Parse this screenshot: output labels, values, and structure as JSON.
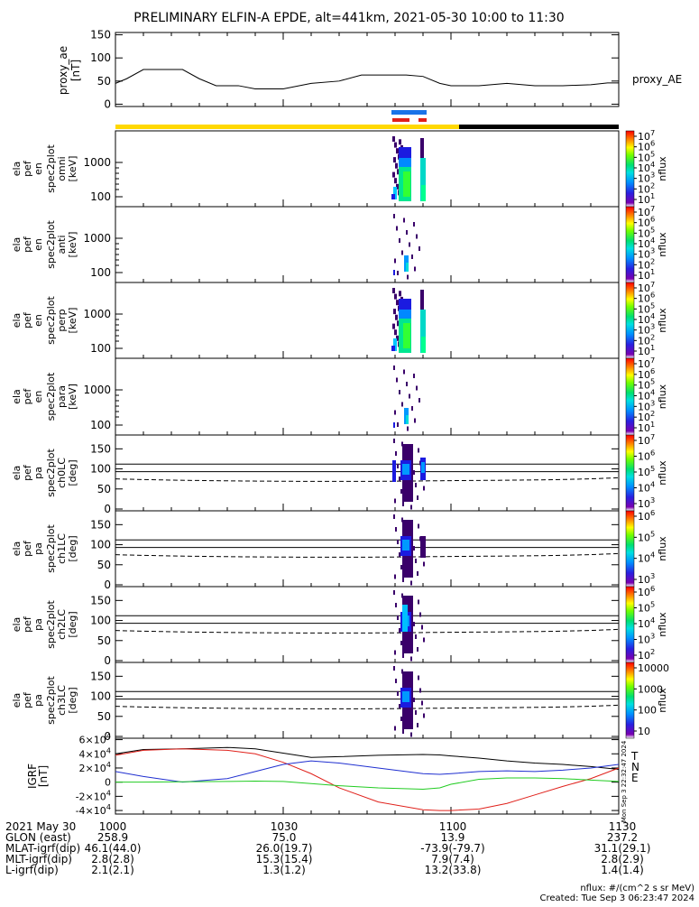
{
  "title": "PRELIMINARY ELFIN-A EPDE, alt=441km, 2021-05-30 10:00 to 11:30",
  "colors": {
    "sci_zone": "#ffd800",
    "night": "#000000",
    "trace_blue": "#1a73e8",
    "trace_red": "#e0201a"
  },
  "ae": {
    "ylabel_lines": [
      "proxy_ae",
      "[nT]"
    ],
    "yticks": [
      "0",
      "50",
      "100",
      "150"
    ],
    "legend": "proxy_AE"
  },
  "panels": [
    {
      "ylabel_lines": [
        "ela",
        "pef",
        "en",
        "spec2plot",
        "omni",
        "[keV]"
      ],
      "yticks": [
        "100",
        "1000"
      ],
      "cbar_ticks": [
        "10<sup>7</sup>",
        "10<sup>6</sup>",
        "10<sup>5</sup>",
        "10<sup>4</sup>",
        "10<sup>3</sup>",
        "10<sup>2</sup>",
        "10<sup>1</sup>"
      ],
      "cbar_label": "nflux"
    },
    {
      "ylabel_lines": [
        "ela",
        "pef",
        "en",
        "spec2plot",
        "anti",
        "[keV]"
      ],
      "yticks": [
        "100",
        "1000"
      ],
      "cbar_ticks": [
        "10<sup>7</sup>",
        "10<sup>6</sup>",
        "10<sup>5</sup>",
        "10<sup>4</sup>",
        "10<sup>3</sup>",
        "10<sup>2</sup>",
        "10<sup>1</sup>"
      ],
      "cbar_label": "nflux"
    },
    {
      "ylabel_lines": [
        "ela",
        "pef",
        "en",
        "spec2plot",
        "perp",
        "[keV]"
      ],
      "yticks": [
        "100",
        "1000"
      ],
      "cbar_ticks": [
        "10<sup>7</sup>",
        "10<sup>6</sup>",
        "10<sup>5</sup>",
        "10<sup>4</sup>",
        "10<sup>3</sup>",
        "10<sup>2</sup>",
        "10<sup>1</sup>"
      ],
      "cbar_label": "nflux"
    },
    {
      "ylabel_lines": [
        "ela",
        "pef",
        "en",
        "spec2plot",
        "para",
        "[keV]"
      ],
      "yticks": [
        "100",
        "1000"
      ],
      "cbar_ticks": [
        "10<sup>7</sup>",
        "10<sup>6</sup>",
        "10<sup>5</sup>",
        "10<sup>4</sup>",
        "10<sup>3</sup>",
        "10<sup>2</sup>",
        "10<sup>1</sup>"
      ],
      "cbar_label": "nflux"
    },
    {
      "ylabel_lines": [
        "ela",
        "pef",
        "pa",
        "spec2plot",
        "ch0LC",
        "[deg]"
      ],
      "yticks": [
        "0",
        "50",
        "100",
        "150"
      ],
      "cbar_ticks": [
        "10<sup>7</sup>",
        "10<sup>6</sup>",
        "10<sup>5</sup>",
        "10<sup>4</sup>",
        "10<sup>3</sup>"
      ],
      "cbar_label": "nflux"
    },
    {
      "ylabel_lines": [
        "ela",
        "pef",
        "pa",
        "spec2plot",
        "ch1LC",
        "[deg]"
      ],
      "yticks": [
        "0",
        "50",
        "100",
        "150"
      ],
      "cbar_ticks": [
        "10<sup>6</sup>",
        "10<sup>5</sup>",
        "10<sup>4</sup>",
        "10<sup>3</sup>"
      ],
      "cbar_label": "nflux"
    },
    {
      "ylabel_lines": [
        "ela",
        "pef",
        "pa",
        "spec2plot",
        "ch2LC",
        "[deg]"
      ],
      "yticks": [
        "0",
        "50",
        "100",
        "150"
      ],
      "cbar_ticks": [
        "10<sup>6</sup>",
        "10<sup>5</sup>",
        "10<sup>4</sup>",
        "10<sup>3</sup>",
        "10<sup>2</sup>"
      ],
      "cbar_label": "nflux"
    },
    {
      "ylabel_lines": [
        "ela",
        "pef",
        "pa",
        "spec2plot",
        "ch3LC",
        "[deg]"
      ],
      "yticks": [
        "0",
        "50",
        "100",
        "150"
      ],
      "cbar_ticks": [
        "10000",
        "1000",
        "100",
        "10"
      ],
      "cbar_label": "nflux"
    }
  ],
  "igrf": {
    "ylabel_lines": [
      "IGRF",
      "[nT]"
    ],
    "yticks": [
      "-4×10<sup>4</sup>",
      "-2×10<sup>4</sup>",
      "0",
      "2×10<sup>4</sup>",
      "4×10<sup>4</sup>",
      "6×10<sup>4</sup>"
    ],
    "legend": [
      {
        "label": "T",
        "color": "#000000"
      },
      {
        "label": "N",
        "color": "#e0201a"
      },
      {
        "label": "E",
        "color": "#22cc22"
      }
    ],
    "side_text": "Mon Sep  3 22:32:47 2024"
  },
  "footer": {
    "rows": [
      {
        "label": "2021 May 30",
        "values": [
          "1000",
          "1030",
          "1100",
          "1130"
        ]
      },
      {
        "label": "GLON (east)",
        "values": [
          "258.9",
          "75.0",
          "13.9",
          "237.2"
        ]
      },
      {
        "label": "MLAT-igrf(dip)",
        "values": [
          "46.1(44.0)",
          "26.0(19.7)",
          "-73.9(-79.7)",
          "31.1(29.1)"
        ]
      },
      {
        "label": "MLT-igrf(dip)",
        "values": [
          "2.8(2.8)",
          "15.3(15.4)",
          "7.9(7.4)",
          "2.8(2.9)"
        ]
      },
      {
        "label": "L-igrf(dip)",
        "values": [
          "2.1(2.1)",
          "1.3(1.2)",
          "13.2(33.8)",
          "1.4(1.4)"
        ]
      }
    ],
    "note1": "nflux: #/(cm^2 s sr MeV)",
    "note2": "Created: Tue Sep  3 06:23:47 2024"
  },
  "chart_data": {
    "type": "line",
    "title": "PRELIMINARY ELFIN-A EPDE, alt=441km, 2021-05-30 10:00 to 11:30",
    "x_range": [
      "10:00",
      "11:30"
    ],
    "x_ticks": [
      "1000",
      "1030",
      "1100",
      "1130"
    ],
    "series": [
      {
        "name": "proxy_AE",
        "x": [
          "10:00",
          "10:02",
          "10:05",
          "10:08",
          "10:12",
          "10:15",
          "10:18",
          "10:22",
          "10:25",
          "10:30",
          "10:35",
          "10:40",
          "10:44",
          "10:48",
          "10:52",
          "10:55",
          "10:58",
          "11:00",
          "11:05",
          "11:10",
          "11:15",
          "11:20",
          "11:25",
          "11:28",
          "11:30"
        ],
        "values": [
          45,
          55,
          75,
          75,
          75,
          55,
          40,
          40,
          33,
          33,
          45,
          50,
          63,
          63,
          63,
          60,
          45,
          40,
          40,
          45,
          40,
          40,
          42,
          46,
          46
        ]
      },
      {
        "name": "T",
        "x": [
          "10:00",
          "10:05",
          "10:12",
          "10:20",
          "10:25",
          "10:30",
          "10:35",
          "10:40",
          "10:47",
          "10:55",
          "10:58",
          "11:00",
          "11:05",
          "11:10",
          "11:15",
          "11:20",
          "11:25",
          "11:30"
        ],
        "values": [
          40000,
          46000,
          47000,
          49000,
          47000,
          41000,
          35000,
          36000,
          38000,
          39000,
          38500,
          37000,
          34000,
          30000,
          27000,
          25000,
          22000,
          18000
        ]
      },
      {
        "name": "N",
        "x": [
          "10:00",
          "10:05",
          "10:12",
          "10:20",
          "10:25",
          "10:30",
          "10:35",
          "10:40",
          "10:47",
          "10:55",
          "10:58",
          "11:00",
          "11:05",
          "11:10",
          "11:15",
          "11:20",
          "11:25",
          "11:30"
        ],
        "values": [
          38000,
          45000,
          47000,
          45000,
          40000,
          28000,
          12000,
          -8000,
          -28000,
          -39000,
          -40000,
          -40000,
          -38000,
          -30000,
          -18000,
          -6000,
          5000,
          20000
        ]
      },
      {
        "name": "Blue",
        "x": [
          "10:00",
          "10:05",
          "10:12",
          "10:20",
          "10:25",
          "10:30",
          "10:35",
          "10:40",
          "10:47",
          "10:55",
          "10:58",
          "11:00",
          "11:05",
          "11:10",
          "11:15",
          "11:20",
          "11:25",
          "11:30"
        ],
        "values": [
          15000,
          8000,
          0,
          5000,
          15000,
          25000,
          30000,
          27000,
          20000,
          12000,
          11000,
          12000,
          15000,
          16000,
          15000,
          17000,
          20000,
          25000
        ]
      },
      {
        "name": "E",
        "x": [
          "10:00",
          "10:05",
          "10:12",
          "10:20",
          "10:25",
          "10:30",
          "10:35",
          "10:40",
          "10:47",
          "10:55",
          "10:58",
          "11:00",
          "11:05",
          "11:10",
          "11:15",
          "11:20",
          "11:25",
          "11:30"
        ],
        "values": [
          0,
          0,
          500,
          1000,
          1500,
          1000,
          -2000,
          -5000,
          -8000,
          -10000,
          -8000,
          -3000,
          4000,
          6000,
          6000,
          5000,
          3000,
          1000
        ]
      }
    ]
  }
}
